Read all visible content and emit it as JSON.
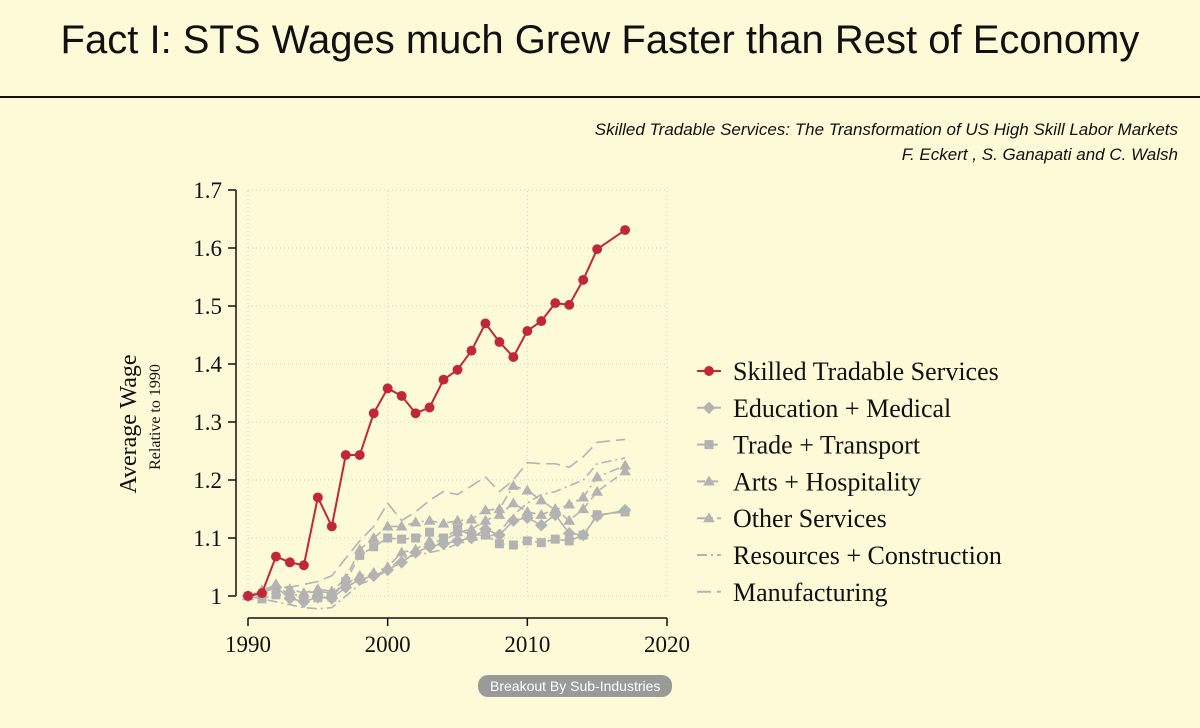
{
  "slide": {
    "title": "Fact I: STS Wages much Grew Faster than Rest of Economy",
    "paper_title": "Skilled Tradable Services: The Transformation of US High Skill Labor Markets",
    "authors": "F. Eckert , S. Ganapati and C. Walsh",
    "badge": "Breakout By Sub-Industries"
  },
  "colors": {
    "background": "#fdfad8",
    "sts": "#c0283a",
    "others": "#b3b3b3",
    "grid": "#cfcfcf"
  },
  "chart_data": {
    "type": "line",
    "title": "",
    "ylabel": "Average Wage",
    "ylabel_sub": "Relative to 1990",
    "xlabel": "",
    "xlim": [
      1990,
      2020
    ],
    "ylim": [
      1,
      1.7
    ],
    "xticks": [
      1990,
      2000,
      2010,
      2020
    ],
    "yticks": [
      1,
      1.1,
      1.2,
      1.3,
      1.4,
      1.5,
      1.6,
      1.7
    ],
    "ytick_labels": [
      "1",
      "1.1",
      "1.2",
      "1.3",
      "1.4",
      "1.5",
      "1.6",
      "1.7"
    ],
    "x": [
      1990,
      1991,
      1992,
      1993,
      1994,
      1995,
      1996,
      1997,
      1998,
      1999,
      2000,
      2001,
      2002,
      2003,
      2004,
      2005,
      2006,
      2007,
      2008,
      2009,
      2010,
      2011,
      2012,
      2013,
      2014,
      2015,
      2016,
      2017
    ],
    "legend_position": "right",
    "series": [
      {
        "name": "Skilled Tradable Services",
        "marker": "circle",
        "dash": "solid",
        "color": "#c0283a",
        "values": [
          1.0,
          1.005,
          1.068,
          1.058,
          1.053,
          1.17,
          1.12,
          1.243,
          1.243,
          1.315,
          1.358,
          1.345,
          1.315,
          1.325,
          1.373,
          1.39,
          1.423,
          1.47,
          1.438,
          1.412,
          1.457,
          1.474,
          1.505,
          1.502,
          1.545,
          1.598,
          null,
          1.631
        ]
      },
      {
        "name": "Education + Medical",
        "marker": "diamond",
        "dash": "solid",
        "color": "#b3b3b3",
        "values": [
          1.0,
          1.005,
          1.015,
          0.996,
          0.99,
          0.998,
          0.996,
          1.015,
          1.028,
          1.035,
          1.045,
          1.058,
          1.075,
          1.085,
          1.09,
          1.095,
          1.1,
          1.115,
          1.105,
          1.13,
          1.135,
          1.122,
          1.14,
          1.108,
          1.105,
          1.138,
          null,
          1.148
        ]
      },
      {
        "name": "Trade + Transport",
        "marker": "square",
        "dash": "dash",
        "color": "#b3b3b3",
        "values": [
          1.0,
          0.995,
          1.002,
          1.0,
          0.995,
          0.997,
          0.998,
          1.025,
          1.07,
          1.085,
          1.1,
          1.098,
          1.1,
          1.11,
          1.1,
          1.115,
          1.105,
          1.105,
          1.09,
          1.088,
          1.095,
          1.092,
          1.098,
          1.095,
          1.105,
          1.14,
          null,
          1.145
        ]
      },
      {
        "name": "Arts + Hospitality",
        "marker": "triangle",
        "dash": "dash",
        "color": "#b3b3b3",
        "values": [
          1.0,
          1.01,
          1.02,
          1.012,
          1.005,
          1.008,
          1.005,
          1.02,
          1.035,
          1.04,
          1.05,
          1.075,
          1.08,
          1.095,
          1.095,
          1.11,
          1.115,
          1.13,
          1.14,
          1.16,
          1.145,
          1.14,
          1.15,
          1.13,
          1.15,
          1.18,
          null,
          1.215
        ]
      },
      {
        "name": "Other Services",
        "marker": "triangle",
        "dash": "dashdot",
        "color": "#b3b3b3",
        "values": [
          1.0,
          1.005,
          1.02,
          1.0,
          1.005,
          1.012,
          1.008,
          1.03,
          1.08,
          1.1,
          1.12,
          1.12,
          1.127,
          1.13,
          1.125,
          1.13,
          1.132,
          1.148,
          1.15,
          1.19,
          1.182,
          1.165,
          1.148,
          1.158,
          1.17,
          1.205,
          null,
          1.225
        ]
      },
      {
        "name": "Resources + Construction",
        "marker": "none",
        "dash": "dashdot",
        "color": "#b3b3b3",
        "values": [
          1.0,
          0.995,
          0.99,
          0.985,
          0.98,
          0.978,
          0.98,
          1.0,
          1.02,
          1.03,
          1.045,
          1.065,
          1.07,
          1.075,
          1.08,
          1.09,
          1.095,
          1.1,
          1.11,
          1.14,
          1.16,
          1.175,
          1.18,
          1.19,
          1.2,
          1.228,
          null,
          1.238
        ]
      },
      {
        "name": "Manufacturing",
        "marker": "none",
        "dash": "longdash",
        "color": "#b3b3b3",
        "values": [
          1.0,
          1.008,
          1.02,
          1.015,
          1.02,
          1.025,
          1.035,
          1.065,
          1.095,
          1.12,
          1.16,
          1.13,
          1.145,
          1.165,
          1.18,
          1.175,
          1.19,
          1.205,
          1.18,
          1.2,
          1.23,
          1.228,
          1.228,
          1.222,
          1.24,
          1.265,
          null,
          1.27
        ]
      }
    ]
  }
}
